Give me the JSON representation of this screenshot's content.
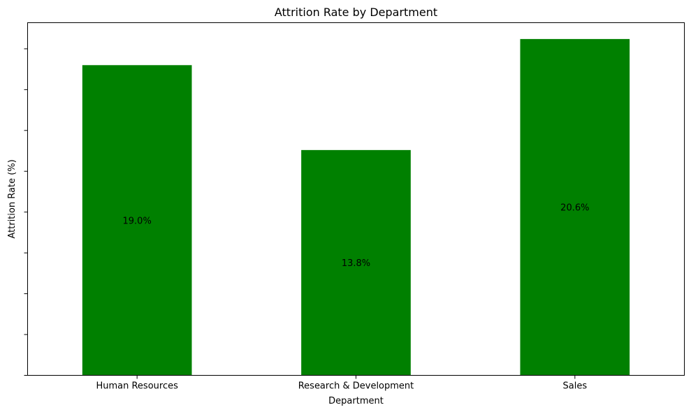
{
  "chart_data": {
    "type": "bar",
    "title": "Attrition Rate by Department",
    "xlabel": "Department",
    "ylabel": "Attrition Rate (%)",
    "categories": [
      "Human Resources",
      "Research & Development",
      "Sales"
    ],
    "values": [
      19.0,
      13.8,
      20.6
    ],
    "data_labels": [
      "19.0%",
      "13.8%",
      "20.6%"
    ],
    "ylim": [
      0,
      21.6
    ],
    "yticks": [
      0,
      2.5,
      5,
      7.5,
      10,
      12.5,
      15,
      17.5,
      20
    ],
    "ytick_labels_visible": false,
    "grid": false,
    "legend": "none",
    "bar_color": "#008000"
  }
}
